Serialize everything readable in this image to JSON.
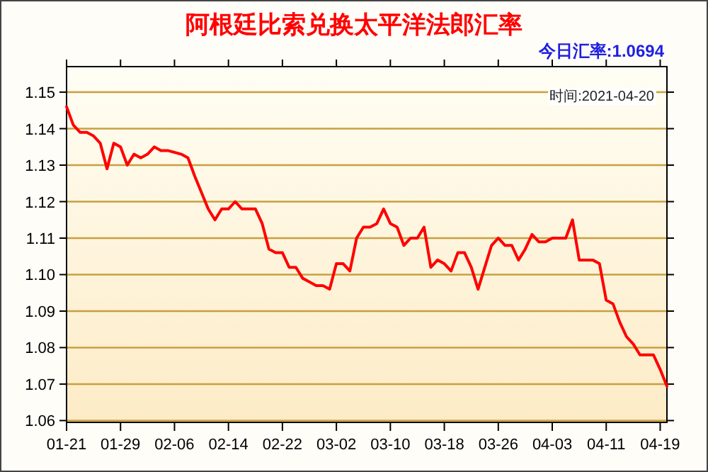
{
  "chart_data": {
    "type": "line",
    "title": "阿根廷比索兑换太平洋法郎汇率",
    "annotations": [
      "今日汇率:1.0694",
      "时间:2021-04-20"
    ],
    "x": [
      "--01-21",
      "--01-22",
      "--01-23",
      "--01-24",
      "--01-25",
      "--01-26",
      "--01-27",
      "--01-28",
      "--01-29",
      "--01-30",
      "--01-31",
      "--02-01",
      "--02-02",
      "--02-03",
      "--02-04",
      "--02-05",
      "--02-07",
      "--02-08",
      "--02-09",
      "--02-11",
      "--02-12",
      "--02-13",
      "--02-14",
      "--02-15",
      "--02-16",
      "--02-18",
      "--02-19",
      "--02-20",
      "--02-21",
      "--02-22",
      "--02-23",
      "--02-24",
      "--02-25",
      "--02-26",
      "--02-27",
      "--02-28",
      "--03-01",
      "--03-02",
      "--03-03",
      "--03-04",
      "--03-05",
      "--03-06",
      "--03-07",
      "--03-08",
      "--03-09",
      "--03-10",
      "--03-11",
      "--03-12",
      "--03-13",
      "--03-14",
      "--03-15",
      "--03-16",
      "--03-17",
      "--03-18",
      "--03-19",
      "--03-20",
      "--03-21",
      "--03-22",
      "--03-23",
      "--03-24",
      "--03-25",
      "--03-26",
      "--03-27",
      "--03-28",
      "--03-29",
      "--03-30",
      "--03-31",
      "--04-01",
      "--04-02",
      "--04-03",
      "--04-04",
      "--04-05",
      "--04-06",
      "--04-07",
      "--04-08",
      "--04-09",
      "--04-10",
      "--04-11",
      "--04-12",
      "--04-13",
      "--04-14",
      "--04-15",
      "--04-16",
      "--04-17",
      "--04-18",
      "--04-19",
      "--04-20"
    ],
    "series": [
      {
        "color": "#ff0000",
        "values": [
          1.146,
          1.141,
          1.139,
          1.139,
          1.138,
          1.136,
          1.129,
          1.136,
          1.135,
          1.13,
          1.133,
          1.132,
          1.133,
          1.135,
          1.134,
          1.134,
          1.133,
          1.132,
          1.127,
          1.118,
          1.115,
          1.118,
          1.118,
          1.12,
          1.118,
          1.118,
          1.114,
          1.107,
          1.106,
          1.106,
          1.102,
          1.102,
          1.099,
          1.098,
          1.097,
          1.097,
          1.096,
          1.103,
          1.103,
          1.101,
          1.11,
          1.113,
          1.113,
          1.114,
          1.118,
          1.114,
          1.113,
          1.108,
          1.11,
          1.11,
          1.113,
          1.102,
          1.104,
          1.103,
          1.101,
          1.106,
          1.106,
          1.102,
          1.096,
          1.102,
          1.108,
          1.11,
          1.108,
          1.108,
          1.104,
          1.107,
          1.111,
          1.109,
          1.109,
          1.11,
          1.11,
          1.11,
          1.115,
          1.104,
          1.104,
          1.104,
          1.103,
          1.093,
          1.092,
          1.087,
          1.083,
          1.081,
          1.078,
          1.078,
          1.078,
          1.074,
          1.0694
        ]
      }
    ],
    "xlim": [
      "--01-21",
      "--04-20"
    ],
    "xticks": [
      {
        "value": "--01-21",
        "label": "01-21"
      },
      {
        "value": "--01-29",
        "label": "01-29"
      },
      {
        "value": "--02-06",
        "label": "02-06"
      },
      {
        "value": "--02-14",
        "label": "02-14"
      },
      {
        "value": "--02-22",
        "label": "02-22"
      },
      {
        "value": "--03-02",
        "label": "03-02"
      },
      {
        "value": "--03-10",
        "label": "03-10"
      },
      {
        "value": "--03-18",
        "label": "03-18"
      },
      {
        "value": "--03-26",
        "label": "03-26"
      },
      {
        "value": "--04-03",
        "label": "04-03"
      },
      {
        "value": "--04-11",
        "label": "04-11"
      },
      {
        "value": "--04-19",
        "label": "04-19"
      }
    ],
    "ylim": [
      1.0595,
      1.157
    ],
    "yticks": [
      {
        "value": 1.06,
        "label": "1.06"
      },
      {
        "value": 1.07,
        "label": "1.07"
      },
      {
        "value": 1.08,
        "label": "1.08"
      },
      {
        "value": 1.09,
        "label": "1.09"
      },
      {
        "value": 1.1,
        "label": "1.10"
      },
      {
        "value": 1.11,
        "label": "1.11"
      },
      {
        "value": 1.12,
        "label": "1.12"
      },
      {
        "value": 1.13,
        "label": "1.13"
      },
      {
        "value": 1.14,
        "label": "1.14"
      },
      {
        "value": 1.15,
        "label": "1.15"
      }
    ],
    "grid": "y"
  }
}
